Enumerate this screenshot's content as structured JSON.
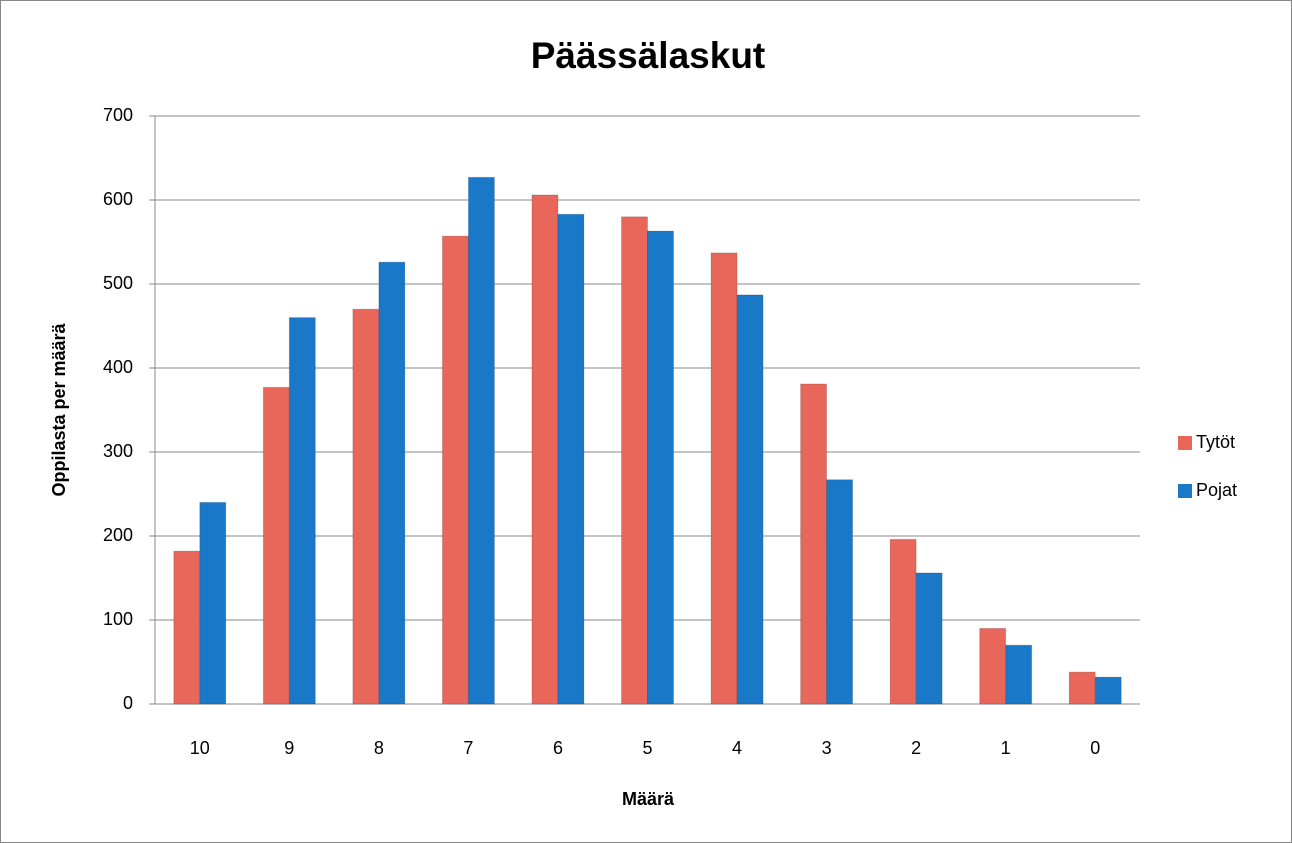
{
  "chart_data": {
    "type": "bar",
    "title": "Päässälaskut",
    "x_label": "Määrä",
    "y_label": "Oppilasta per määrä",
    "categories": [
      "10",
      "9",
      "8",
      "7",
      "6",
      "5",
      "4",
      "3",
      "2",
      "1",
      "0"
    ],
    "series": [
      {
        "name": "Tytöt",
        "color": "#e8675a",
        "values": [
          182,
          377,
          470,
          557,
          606,
          580,
          537,
          381,
          196,
          90,
          38
        ]
      },
      {
        "name": "Pojat",
        "color": "#1a78c8",
        "values": [
          240,
          460,
          526,
          627,
          583,
          563,
          487,
          267,
          156,
          70,
          32
        ]
      }
    ],
    "ylim": [
      0,
      700
    ],
    "yticks": [
      0,
      100,
      200,
      300,
      400,
      500,
      600,
      700
    ],
    "grid": true,
    "legend": "right"
  }
}
